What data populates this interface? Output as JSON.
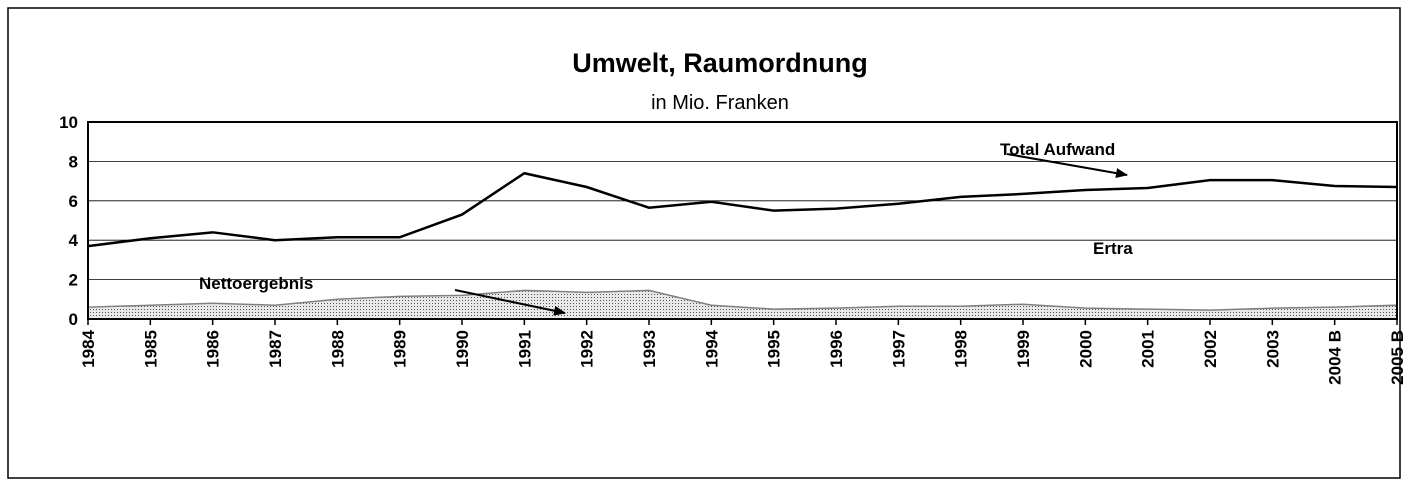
{
  "chart_data": {
    "type": "line",
    "title": "Umwelt, Raumordnung",
    "subtitle": "in Mio. Franken",
    "categories": [
      "1984",
      "1985",
      "1986",
      "1987",
      "1988",
      "1989",
      "1990",
      "1991",
      "1992",
      "1993",
      "1994",
      "1995",
      "1996",
      "1997",
      "1998",
      "1999",
      "2000",
      "2001",
      "2002",
      "2003",
      "2004 B",
      "2005 B"
    ],
    "series": [
      {
        "name": "Total Aufwand",
        "type": "line",
        "color": "#000000",
        "values": [
          3.7,
          4.1,
          4.4,
          4.0,
          4.15,
          4.15,
          5.3,
          7.4,
          6.7,
          5.65,
          5.95,
          5.5,
          5.6,
          5.85,
          6.2,
          6.35,
          6.55,
          6.65,
          7.05,
          7.05,
          6.75,
          6.7
        ]
      },
      {
        "name": "Nettoergebnis",
        "type": "area",
        "color": "#808080",
        "values": [
          0.6,
          0.7,
          0.8,
          0.7,
          1.0,
          1.15,
          1.2,
          1.45,
          1.35,
          1.45,
          0.7,
          0.5,
          0.55,
          0.65,
          0.65,
          0.75,
          0.55,
          0.5,
          0.45,
          0.55,
          0.6,
          0.7
        ]
      }
    ],
    "annotations": [
      "Total Aufwand",
      "Ertra",
      "Nettoergebnis"
    ],
    "ylim": [
      0,
      10
    ],
    "yticks": [
      0,
      2,
      4,
      6,
      8,
      10
    ],
    "grid": true
  }
}
